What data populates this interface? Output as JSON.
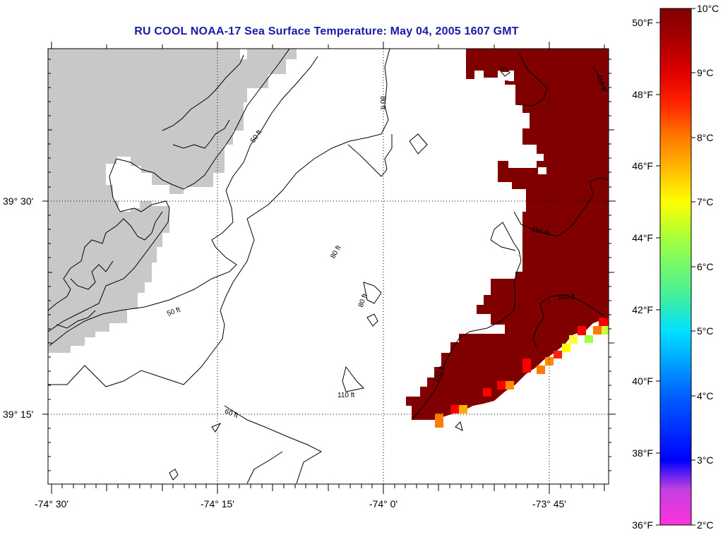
{
  "title": "RU COOL  NOAA-17  Sea Surface Temperature:  May 04, 2005 1607 GMT",
  "axes": {
    "x_ticks": [
      "-74° 30'",
      "-74° 15'",
      "-74° 0'",
      "-73° 45'"
    ],
    "y_ticks": [
      "39° 30'",
      "39° 15'"
    ]
  },
  "contours": {
    "labels": [
      "50 ft",
      "50 ft",
      "80 ft",
      "80 ft",
      "80 ft",
      "60 ft",
      "110 ft",
      "110 ft",
      "110 ft",
      "110 ft",
      "110 ft"
    ]
  },
  "colorbar": {
    "fahrenheit": [
      "50°F",
      "48°F",
      "46°F",
      "44°F",
      "42°F",
      "40°F",
      "38°F",
      "36°F"
    ],
    "celsius": [
      "10°C",
      "9°C",
      "8°C",
      "7°C",
      "6°C",
      "5°C",
      "4°C",
      "3°C",
      "2°C"
    ],
    "range_celsius": [
      2,
      10
    ],
    "range_fahrenheit": [
      36,
      50
    ]
  },
  "colors": {
    "title": "#1a1aa6",
    "land": "#c8c8c8",
    "sst_warm": "#800000",
    "grid": "#000000"
  }
}
